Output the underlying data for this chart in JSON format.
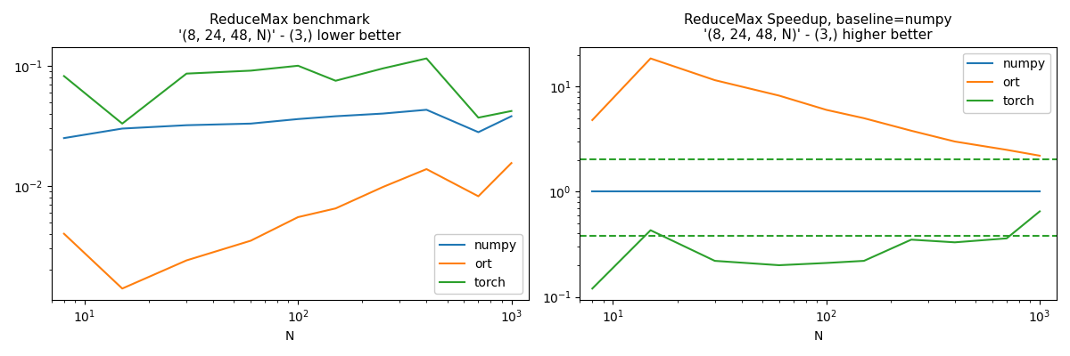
{
  "title_left": "ReduceMax benchmark\n'(8, 24, 48, N)' - (3,) lower better",
  "title_right": "ReduceMax Speedup, baseline=numpy\n'(8, 24, 48, N)' - (3,) higher better",
  "xlabel": "N",
  "N_values": [
    8,
    15,
    30,
    60,
    100,
    150,
    250,
    400,
    700,
    1000
  ],
  "numpy_bench": [
    0.025,
    0.03,
    0.032,
    0.033,
    0.036,
    0.038,
    0.04,
    0.043,
    0.028,
    0.038
  ],
  "ort_bench": [
    0.004,
    0.0014,
    0.0024,
    0.0035,
    0.0055,
    0.0065,
    0.0098,
    0.0138,
    0.0082,
    0.0155
  ],
  "torch_bench": [
    0.082,
    0.033,
    0.086,
    0.091,
    0.1,
    0.075,
    0.095,
    0.115,
    0.037,
    0.042
  ],
  "numpy_speedup": [
    1.0,
    1.0,
    1.0,
    1.0,
    1.0,
    1.0,
    1.0,
    1.0,
    1.0,
    1.0
  ],
  "ort_speedup": [
    4.8,
    18.5,
    11.5,
    8.2,
    6.0,
    5.0,
    3.8,
    3.0,
    2.5,
    2.2
  ],
  "torch_speedup": [
    0.12,
    0.43,
    0.22,
    0.2,
    0.21,
    0.22,
    0.35,
    0.33,
    0.36,
    0.65
  ],
  "torch_speedup_mean_high": 2.05,
  "torch_speedup_mean_low": 0.38,
  "color_numpy": "#1f77b4",
  "color_ort": "#ff7f0e",
  "color_torch": "#2ca02c",
  "legend_labels": [
    "numpy",
    "ort",
    "torch"
  ]
}
